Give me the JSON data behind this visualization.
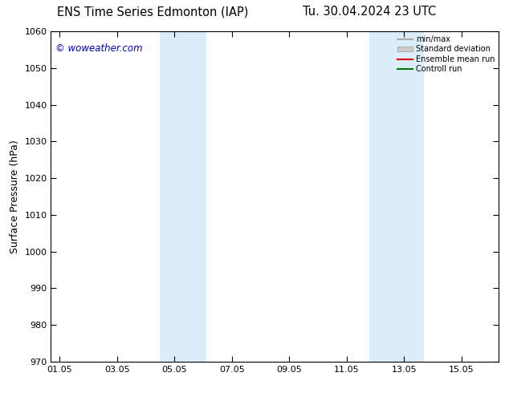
{
  "title_left": "ENS Time Series Edmonton (IAP)",
  "title_right": "Tu. 30.04.2024 23 UTC",
  "ylabel": "Surface Pressure (hPa)",
  "ylim": [
    970,
    1060
  ],
  "yticks": [
    970,
    980,
    990,
    1000,
    1010,
    1020,
    1030,
    1040,
    1050,
    1060
  ],
  "xtick_labels": [
    "01.05",
    "03.05",
    "05.05",
    "07.05",
    "09.05",
    "11.05",
    "13.05",
    "15.05"
  ],
  "xtick_positions": [
    0,
    2,
    4,
    6,
    8,
    10,
    12,
    14
  ],
  "xlim": [
    -0.3,
    15.3
  ],
  "shaded_bands": [
    {
      "x_start": 3.5,
      "x_end": 5.1,
      "color": "#daedf8"
    },
    {
      "x_start": 10.8,
      "x_end": 12.7,
      "color": "#daedf8"
    }
  ],
  "watermark": "© woweather.com",
  "watermark_color": "#0000bb",
  "legend_items": [
    {
      "label": "min/max",
      "color": "#aaaaaa",
      "type": "line",
      "linewidth": 1.5
    },
    {
      "label": "Standard deviation",
      "color": "#cccccc",
      "type": "patch"
    },
    {
      "label": "Ensemble mean run",
      "color": "#dd0000",
      "type": "line",
      "linewidth": 1.5
    },
    {
      "label": "Controll run",
      "color": "#007700",
      "type": "line",
      "linewidth": 1.5
    }
  ],
  "background_color": "#ffffff",
  "title_fontsize": 10.5,
  "ylabel_fontsize": 9,
  "tick_fontsize": 8,
  "legend_fontsize": 7,
  "watermark_fontsize": 8.5
}
